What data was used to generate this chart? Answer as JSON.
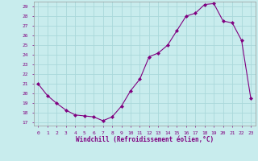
{
  "x": [
    0,
    1,
    2,
    3,
    4,
    5,
    6,
    7,
    8,
    9,
    10,
    11,
    12,
    13,
    14,
    15,
    16,
    17,
    18,
    19,
    20,
    21,
    22,
    23
  ],
  "y": [
    21.0,
    19.8,
    19.0,
    18.3,
    17.8,
    17.7,
    17.6,
    17.2,
    17.6,
    18.7,
    20.3,
    21.5,
    23.8,
    24.2,
    25.0,
    26.5,
    28.0,
    28.3,
    29.2,
    29.3,
    27.5,
    27.3,
    25.5,
    19.5
  ],
  "line_color": "#800080",
  "marker": "D",
  "marker_size": 2,
  "bg_color": "#c8eced",
  "grid_color": "#aad8da",
  "xlabel": "Windchill (Refroidissement éolien,°C)",
  "xlabel_color": "#800080",
  "tick_color": "#800080",
  "ylim_min": 17,
  "ylim_max": 30,
  "yticks": [
    17,
    18,
    19,
    20,
    21,
    22,
    23,
    24,
    25,
    26,
    27,
    28,
    29
  ],
  "xlim_min": -0.5,
  "xlim_max": 23.5,
  "xticks": [
    0,
    1,
    2,
    3,
    4,
    5,
    6,
    7,
    8,
    9,
    10,
    11,
    12,
    13,
    14,
    15,
    16,
    17,
    18,
    19,
    20,
    21,
    22,
    23
  ]
}
